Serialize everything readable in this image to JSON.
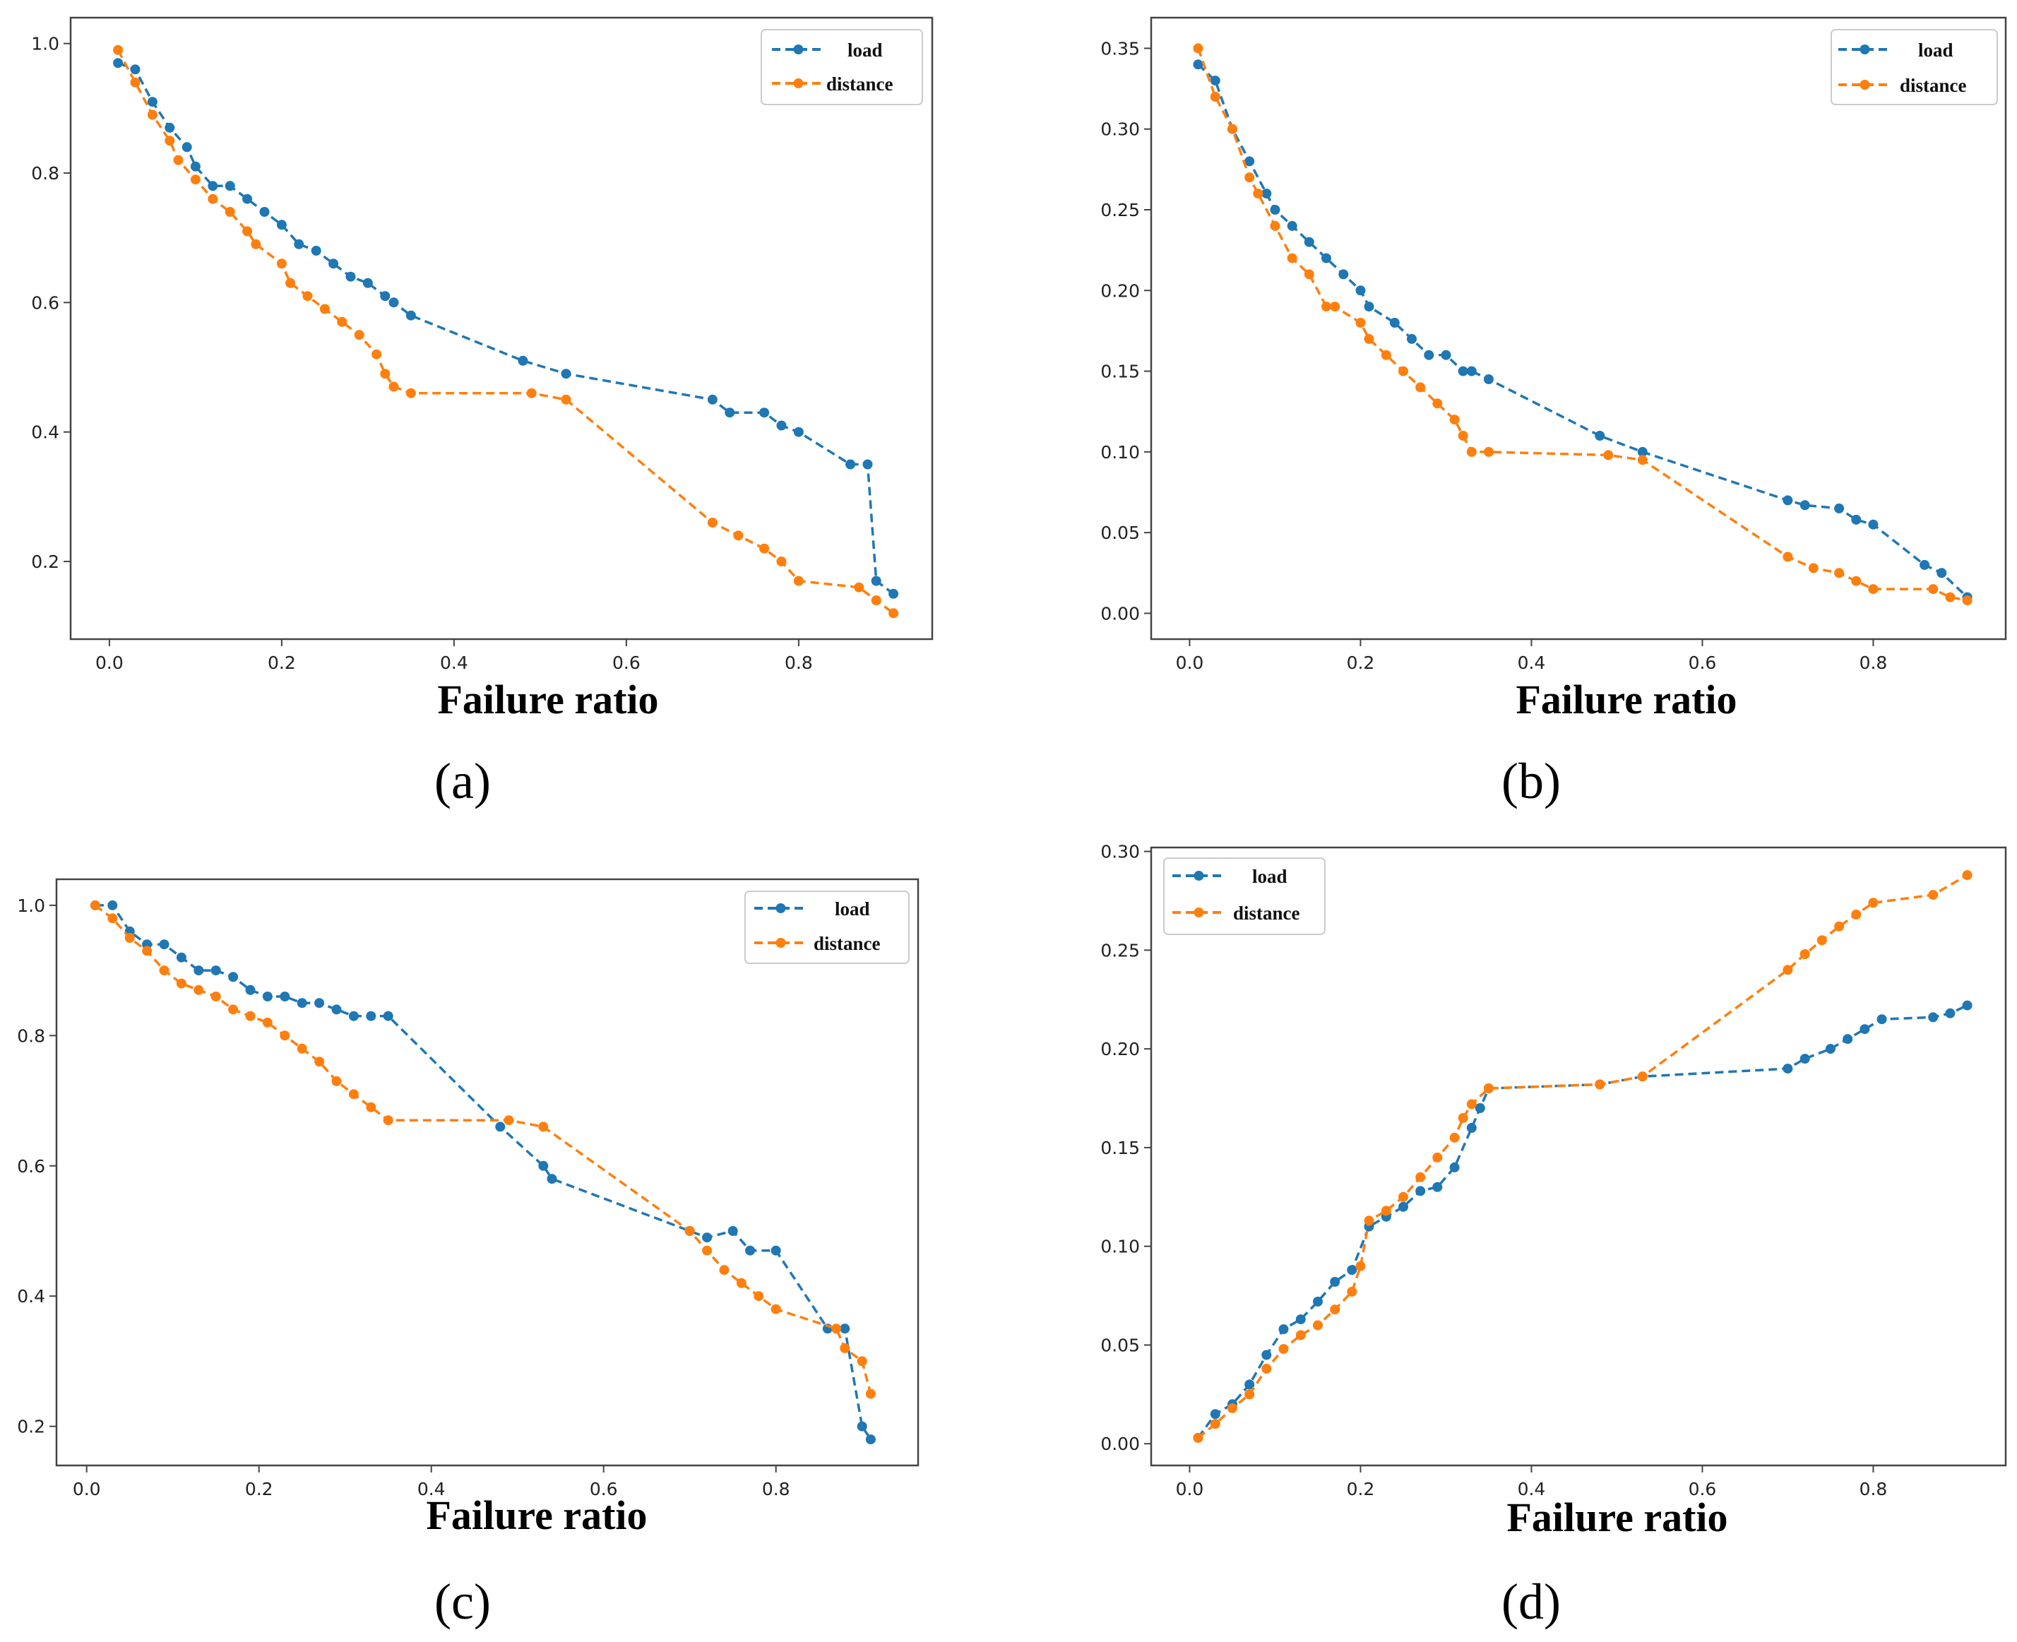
{
  "colors": {
    "load": "#1f77b4",
    "distance": "#ff7f0e"
  },
  "chart_data": [
    {
      "type": "line",
      "panel_label": "(a)",
      "xlabel": "Failure ratio",
      "ylabel": "",
      "xlim": [
        -0.045,
        0.955
      ],
      "ylim": [
        0.08,
        1.04
      ],
      "xticks": [
        0.0,
        0.2,
        0.4,
        0.6,
        0.8
      ],
      "xtick_labels": [
        "0.0",
        "0.2",
        "0.4",
        "0.6",
        "0.8"
      ],
      "yticks": [
        0.2,
        0.4,
        0.6,
        0.8,
        1.0
      ],
      "ytick_labels": [
        "0.2",
        "0.4",
        "0.6",
        "0.8",
        "1.0"
      ],
      "legend_loc": "upper right",
      "series": [
        {
          "name": "load",
          "x": [
            0.01,
            0.03,
            0.05,
            0.07,
            0.09,
            0.1,
            0.12,
            0.14,
            0.16,
            0.18,
            0.2,
            0.22,
            0.24,
            0.26,
            0.28,
            0.3,
            0.32,
            0.33,
            0.35,
            0.48,
            0.53,
            0.7,
            0.72,
            0.76,
            0.78,
            0.8,
            0.86,
            0.88,
            0.89,
            0.91
          ],
          "y": [
            0.97,
            0.96,
            0.91,
            0.87,
            0.84,
            0.81,
            0.78,
            0.78,
            0.76,
            0.74,
            0.72,
            0.69,
            0.68,
            0.66,
            0.64,
            0.63,
            0.61,
            0.6,
            0.58,
            0.51,
            0.49,
            0.45,
            0.43,
            0.43,
            0.41,
            0.4,
            0.35,
            0.35,
            0.17,
            0.15
          ]
        },
        {
          "name": "distance",
          "x": [
            0.01,
            0.03,
            0.05,
            0.07,
            0.08,
            0.1,
            0.12,
            0.14,
            0.16,
            0.17,
            0.2,
            0.21,
            0.23,
            0.25,
            0.27,
            0.29,
            0.31,
            0.32,
            0.33,
            0.35,
            0.49,
            0.53,
            0.7,
            0.73,
            0.76,
            0.78,
            0.8,
            0.87,
            0.89,
            0.91
          ],
          "y": [
            0.99,
            0.94,
            0.89,
            0.85,
            0.82,
            0.79,
            0.76,
            0.74,
            0.71,
            0.69,
            0.66,
            0.63,
            0.61,
            0.59,
            0.57,
            0.55,
            0.52,
            0.49,
            0.47,
            0.46,
            0.46,
            0.45,
            0.26,
            0.24,
            0.22,
            0.2,
            0.17,
            0.16,
            0.14,
            0.12
          ]
        }
      ]
    },
    {
      "type": "line",
      "panel_label": "(b)",
      "xlabel": "Failure ratio",
      "ylabel": "",
      "xlim": [
        -0.045,
        0.955
      ],
      "ylim": [
        -0.016,
        0.369
      ],
      "xticks": [
        0.0,
        0.2,
        0.4,
        0.6,
        0.8
      ],
      "xtick_labels": [
        "0.0",
        "0.2",
        "0.4",
        "0.6",
        "0.8"
      ],
      "yticks": [
        0.0,
        0.05,
        0.1,
        0.15,
        0.2,
        0.25,
        0.3,
        0.35
      ],
      "ytick_labels": [
        "0.00",
        "0.05",
        "0.10",
        "0.15",
        "0.20",
        "0.25",
        "0.30",
        "0.35"
      ],
      "legend_loc": "upper right",
      "series": [
        {
          "name": "load",
          "x": [
            0.01,
            0.03,
            0.05,
            0.07,
            0.09,
            0.1,
            0.12,
            0.14,
            0.16,
            0.18,
            0.2,
            0.21,
            0.24,
            0.26,
            0.28,
            0.3,
            0.32,
            0.33,
            0.35,
            0.48,
            0.53,
            0.7,
            0.72,
            0.76,
            0.78,
            0.8,
            0.86,
            0.88,
            0.91
          ],
          "y": [
            0.34,
            0.33,
            0.3,
            0.28,
            0.26,
            0.25,
            0.24,
            0.23,
            0.22,
            0.21,
            0.2,
            0.19,
            0.18,
            0.17,
            0.16,
            0.16,
            0.15,
            0.15,
            0.145,
            0.11,
            0.1,
            0.07,
            0.067,
            0.065,
            0.058,
            0.055,
            0.03,
            0.025,
            0.01
          ]
        },
        {
          "name": "distance",
          "x": [
            0.01,
            0.03,
            0.05,
            0.07,
            0.08,
            0.1,
            0.12,
            0.14,
            0.16,
            0.17,
            0.2,
            0.21,
            0.23,
            0.25,
            0.27,
            0.29,
            0.31,
            0.32,
            0.33,
            0.35,
            0.49,
            0.53,
            0.7,
            0.73,
            0.76,
            0.78,
            0.8,
            0.87,
            0.89,
            0.91
          ],
          "y": [
            0.35,
            0.32,
            0.3,
            0.27,
            0.26,
            0.24,
            0.22,
            0.21,
            0.19,
            0.19,
            0.18,
            0.17,
            0.16,
            0.15,
            0.14,
            0.13,
            0.12,
            0.11,
            0.1,
            0.1,
            0.098,
            0.095,
            0.035,
            0.028,
            0.025,
            0.02,
            0.015,
            0.015,
            0.01,
            0.008
          ]
        }
      ]
    },
    {
      "type": "line",
      "panel_label": "(c)",
      "xlabel": "Failure ratio",
      "ylabel": "",
      "xlim": [
        -0.035,
        0.965
      ],
      "ylim": [
        0.14,
        1.04
      ],
      "xticks": [
        0.0,
        0.2,
        0.4,
        0.6,
        0.8
      ],
      "xtick_labels": [
        "0.0",
        "0.2",
        "0.4",
        "0.6",
        "0.8"
      ],
      "yticks": [
        0.2,
        0.4,
        0.6,
        0.8,
        1.0
      ],
      "ytick_labels": [
        "0.2",
        "0.4",
        "0.6",
        "0.8",
        "1.0"
      ],
      "legend_loc": "upper right",
      "series": [
        {
          "name": "load",
          "x": [
            0.01,
            0.03,
            0.05,
            0.07,
            0.09,
            0.11,
            0.13,
            0.15,
            0.17,
            0.19,
            0.21,
            0.23,
            0.25,
            0.27,
            0.29,
            0.31,
            0.33,
            0.35,
            0.48,
            0.53,
            0.54,
            0.7,
            0.72,
            0.75,
            0.77,
            0.8,
            0.86,
            0.88,
            0.9,
            0.91
          ],
          "y": [
            1.0,
            1.0,
            0.96,
            0.94,
            0.94,
            0.92,
            0.9,
            0.9,
            0.89,
            0.87,
            0.86,
            0.86,
            0.85,
            0.85,
            0.84,
            0.83,
            0.83,
            0.83,
            0.66,
            0.6,
            0.58,
            0.5,
            0.49,
            0.5,
            0.47,
            0.47,
            0.35,
            0.35,
            0.2,
            0.18
          ]
        },
        {
          "name": "distance",
          "x": [
            0.01,
            0.03,
            0.05,
            0.07,
            0.09,
            0.11,
            0.13,
            0.15,
            0.17,
            0.19,
            0.21,
            0.23,
            0.25,
            0.27,
            0.29,
            0.31,
            0.33,
            0.35,
            0.49,
            0.53,
            0.7,
            0.72,
            0.74,
            0.76,
            0.78,
            0.8,
            0.87,
            0.88,
            0.9,
            0.91
          ],
          "y": [
            1.0,
            0.98,
            0.95,
            0.93,
            0.9,
            0.88,
            0.87,
            0.86,
            0.84,
            0.83,
            0.82,
            0.8,
            0.78,
            0.76,
            0.73,
            0.71,
            0.69,
            0.67,
            0.67,
            0.66,
            0.5,
            0.47,
            0.44,
            0.42,
            0.4,
            0.38,
            0.35,
            0.32,
            0.3,
            0.25
          ]
        }
      ]
    },
    {
      "type": "line",
      "panel_label": "(d)",
      "xlabel": "Failure ratio",
      "ylabel": "",
      "xlim": [
        -0.045,
        0.955
      ],
      "ylim": [
        -0.011,
        0.302
      ],
      "xticks": [
        0.0,
        0.2,
        0.4,
        0.6,
        0.8
      ],
      "xtick_labels": [
        "0.0",
        "0.2",
        "0.4",
        "0.6",
        "0.8"
      ],
      "yticks": [
        0.0,
        0.05,
        0.1,
        0.15,
        0.2,
        0.25,
        0.3
      ],
      "ytick_labels": [
        "0.00",
        "0.05",
        "0.10",
        "0.15",
        "0.20",
        "0.25",
        "0.30"
      ],
      "legend_loc": "upper left",
      "series": [
        {
          "name": "load",
          "x": [
            0.01,
            0.03,
            0.05,
            0.07,
            0.09,
            0.11,
            0.13,
            0.15,
            0.17,
            0.19,
            0.21,
            0.23,
            0.25,
            0.27,
            0.29,
            0.31,
            0.33,
            0.34,
            0.35,
            0.48,
            0.53,
            0.7,
            0.72,
            0.75,
            0.77,
            0.79,
            0.81,
            0.87,
            0.89,
            0.91
          ],
          "y": [
            0.003,
            0.015,
            0.02,
            0.03,
            0.045,
            0.058,
            0.063,
            0.072,
            0.082,
            0.088,
            0.11,
            0.115,
            0.12,
            0.128,
            0.13,
            0.14,
            0.16,
            0.17,
            0.18,
            0.182,
            0.186,
            0.19,
            0.195,
            0.2,
            0.205,
            0.21,
            0.215,
            0.216,
            0.218,
            0.222
          ]
        },
        {
          "name": "distance",
          "x": [
            0.01,
            0.03,
            0.05,
            0.07,
            0.09,
            0.11,
            0.13,
            0.15,
            0.17,
            0.19,
            0.2,
            0.21,
            0.23,
            0.25,
            0.27,
            0.29,
            0.31,
            0.32,
            0.33,
            0.35,
            0.48,
            0.53,
            0.7,
            0.72,
            0.74,
            0.76,
            0.78,
            0.8,
            0.87,
            0.91
          ],
          "y": [
            0.003,
            0.01,
            0.018,
            0.025,
            0.038,
            0.048,
            0.055,
            0.06,
            0.068,
            0.077,
            0.09,
            0.113,
            0.118,
            0.125,
            0.135,
            0.145,
            0.155,
            0.165,
            0.172,
            0.18,
            0.182,
            0.186,
            0.24,
            0.248,
            0.255,
            0.262,
            0.268,
            0.274,
            0.278,
            0.288
          ]
        }
      ]
    }
  ]
}
